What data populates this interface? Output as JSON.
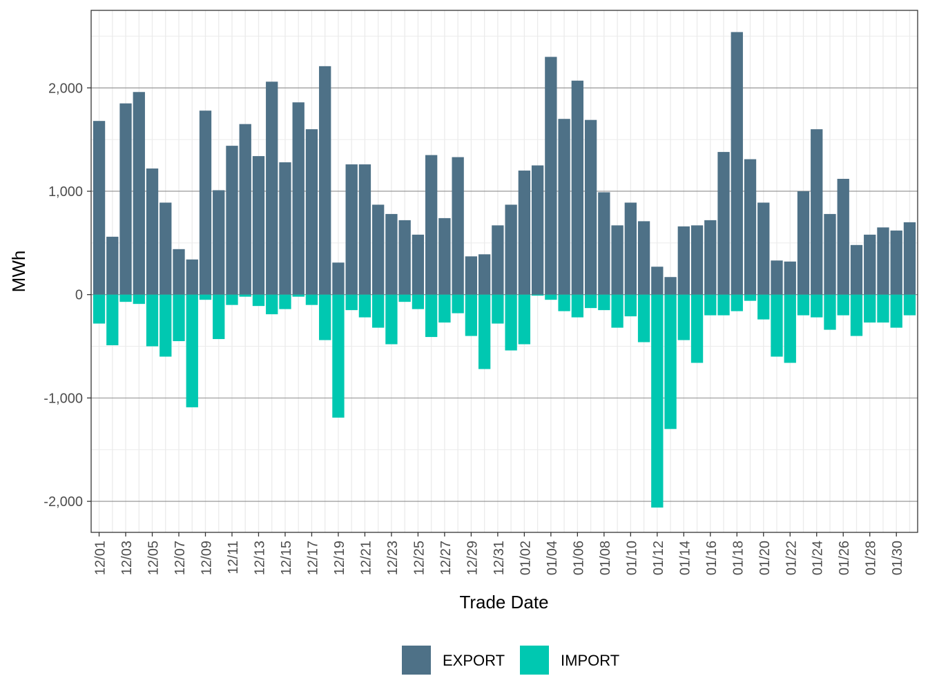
{
  "chart_data": {
    "type": "bar",
    "xlabel": "Trade Date",
    "ylabel": "MWh",
    "ylim": [
      -2300,
      2750
    ],
    "y_ticks": [
      -2000,
      -1000,
      0,
      1000,
      2000
    ],
    "y_tick_labels": [
      "-2,000",
      "-1,000",
      "0",
      "1,000",
      "2,000"
    ],
    "grid": true,
    "legend_position": "bottom",
    "categories": [
      "12/01",
      "12/02",
      "12/03",
      "12/04",
      "12/05",
      "12/06",
      "12/07",
      "12/08",
      "12/09",
      "12/10",
      "12/11",
      "12/12",
      "12/13",
      "12/14",
      "12/15",
      "12/16",
      "12/17",
      "12/18",
      "12/19",
      "12/20",
      "12/21",
      "12/22",
      "12/23",
      "12/24",
      "12/25",
      "12/26",
      "12/27",
      "12/28",
      "12/29",
      "12/30",
      "12/31",
      "01/01",
      "01/02",
      "01/03",
      "01/04",
      "01/05",
      "01/06",
      "01/07",
      "01/08",
      "01/09",
      "01/10",
      "01/11",
      "01/12",
      "01/13",
      "01/14",
      "01/15",
      "01/16",
      "01/17",
      "01/18",
      "01/19",
      "01/20",
      "01/21",
      "01/22",
      "01/23",
      "01/24",
      "01/25",
      "01/26",
      "01/27",
      "01/28",
      "01/29",
      "01/30",
      "01/31"
    ],
    "x_tick_labels": [
      "12/01",
      "12/03",
      "12/05",
      "12/07",
      "12/09",
      "12/11",
      "12/13",
      "12/15",
      "12/17",
      "12/19",
      "12/21",
      "12/23",
      "12/25",
      "12/27",
      "12/29",
      "12/31",
      "01/02",
      "01/04",
      "01/06",
      "01/08",
      "01/10",
      "01/12",
      "01/14",
      "01/16",
      "01/18",
      "01/20",
      "01/22",
      "01/24",
      "01/26",
      "01/28",
      "01/30"
    ],
    "series": [
      {
        "name": "EXPORT",
        "color": "#4e7187",
        "values": [
          1680,
          560,
          1850,
          1960,
          1220,
          890,
          440,
          340,
          1780,
          1010,
          1440,
          1650,
          1340,
          2060,
          1280,
          1860,
          1600,
          2210,
          310,
          1260,
          1260,
          870,
          780,
          720,
          580,
          1350,
          740,
          1330,
          370,
          390,
          670,
          870,
          1200,
          1250,
          2300,
          1700,
          2070,
          1690,
          990,
          670,
          890,
          710,
          270,
          170,
          660,
          670,
          720,
          1380,
          2540,
          1310,
          890,
          330,
          320,
          1000,
          1600,
          780,
          1120,
          480,
          580,
          650,
          620,
          700
        ]
      },
      {
        "name": "IMPORT",
        "color": "#00c8b1",
        "values": [
          -280,
          -490,
          -70,
          -90,
          -500,
          -600,
          -450,
          -1090,
          -50,
          -430,
          -100,
          -20,
          -110,
          -190,
          -140,
          -20,
          -100,
          -440,
          -1190,
          -150,
          -220,
          -320,
          -480,
          -70,
          -140,
          -410,
          -270,
          -180,
          -400,
          -720,
          -280,
          -540,
          -480,
          -10,
          -50,
          -160,
          -220,
          -130,
          -150,
          -320,
          -210,
          -460,
          -2060,
          -1300,
          -440,
          -660,
          -200,
          -200,
          -160,
          -60,
          -240,
          -600,
          -660,
          -200,
          -220,
          -340,
          -200,
          -400,
          -270,
          -270,
          -320,
          -200
        ]
      }
    ]
  }
}
